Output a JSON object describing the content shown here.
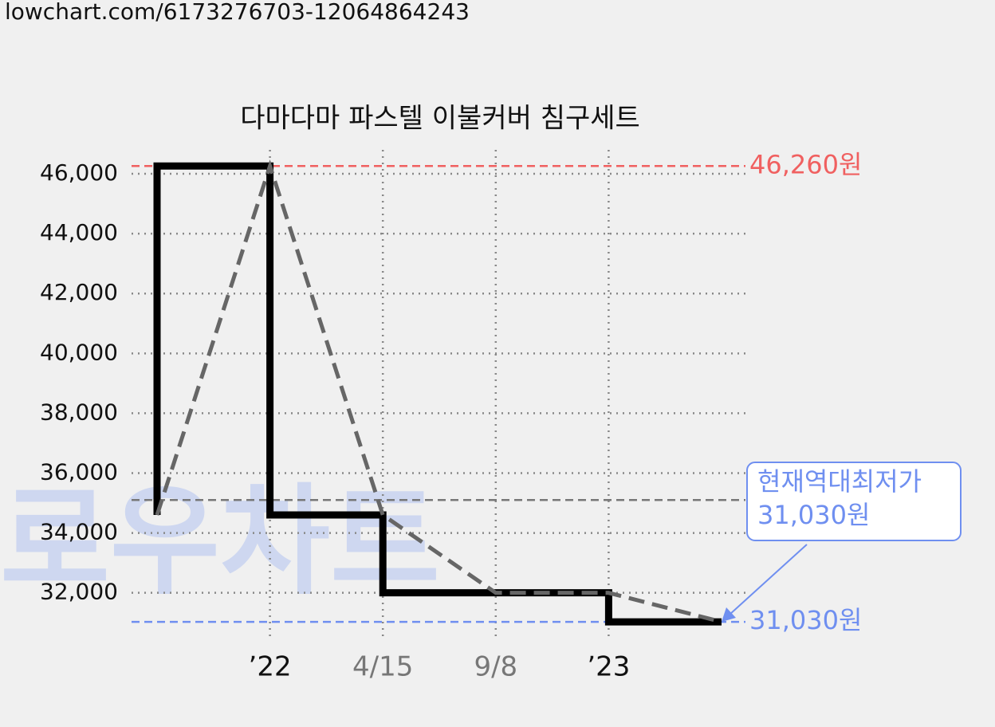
{
  "header": {
    "url": "lowchart.com/6173276703-12064864243"
  },
  "chart_data": {
    "type": "line",
    "title": "다마다마 파스텔 이불커버 침구세트",
    "watermark": "로우차트",
    "categories": [
      null,
      "’22",
      "4/15",
      "9/8",
      "’23",
      null
    ],
    "category_colors": [
      null,
      "#111111",
      "#777777",
      "#777777",
      "#111111",
      null
    ],
    "series": [
      {
        "values": [
          34600,
          46260,
          34600,
          32000,
          32000,
          31030
        ],
        "step_color": "#000000",
        "trend_color": "#666666"
      }
    ],
    "ylim": [
      30500,
      46800
    ],
    "yticks": [
      {
        "value": 32000,
        "label": "32,000"
      },
      {
        "value": 34000,
        "label": "34,000"
      },
      {
        "value": 36000,
        "label": "36,000"
      },
      {
        "value": 38000,
        "label": "38,000"
      },
      {
        "value": 40000,
        "label": "40,000"
      },
      {
        "value": 42000,
        "label": "42,000"
      },
      {
        "value": 44000,
        "label": "44,000"
      },
      {
        "value": 46000,
        "label": "46,000"
      }
    ],
    "grid": true,
    "reference_line": {
      "value": 35100,
      "color": "#777777"
    },
    "max_line": {
      "value": 46260,
      "label": "46,260원",
      "color": "#f06060"
    },
    "min_line": {
      "value": 31030,
      "label": "31,030원",
      "color": "#6f8ff0"
    },
    "annotation": {
      "lines": [
        "현재역대최저가",
        "31,030원"
      ],
      "color": "#6f8ff0"
    }
  }
}
